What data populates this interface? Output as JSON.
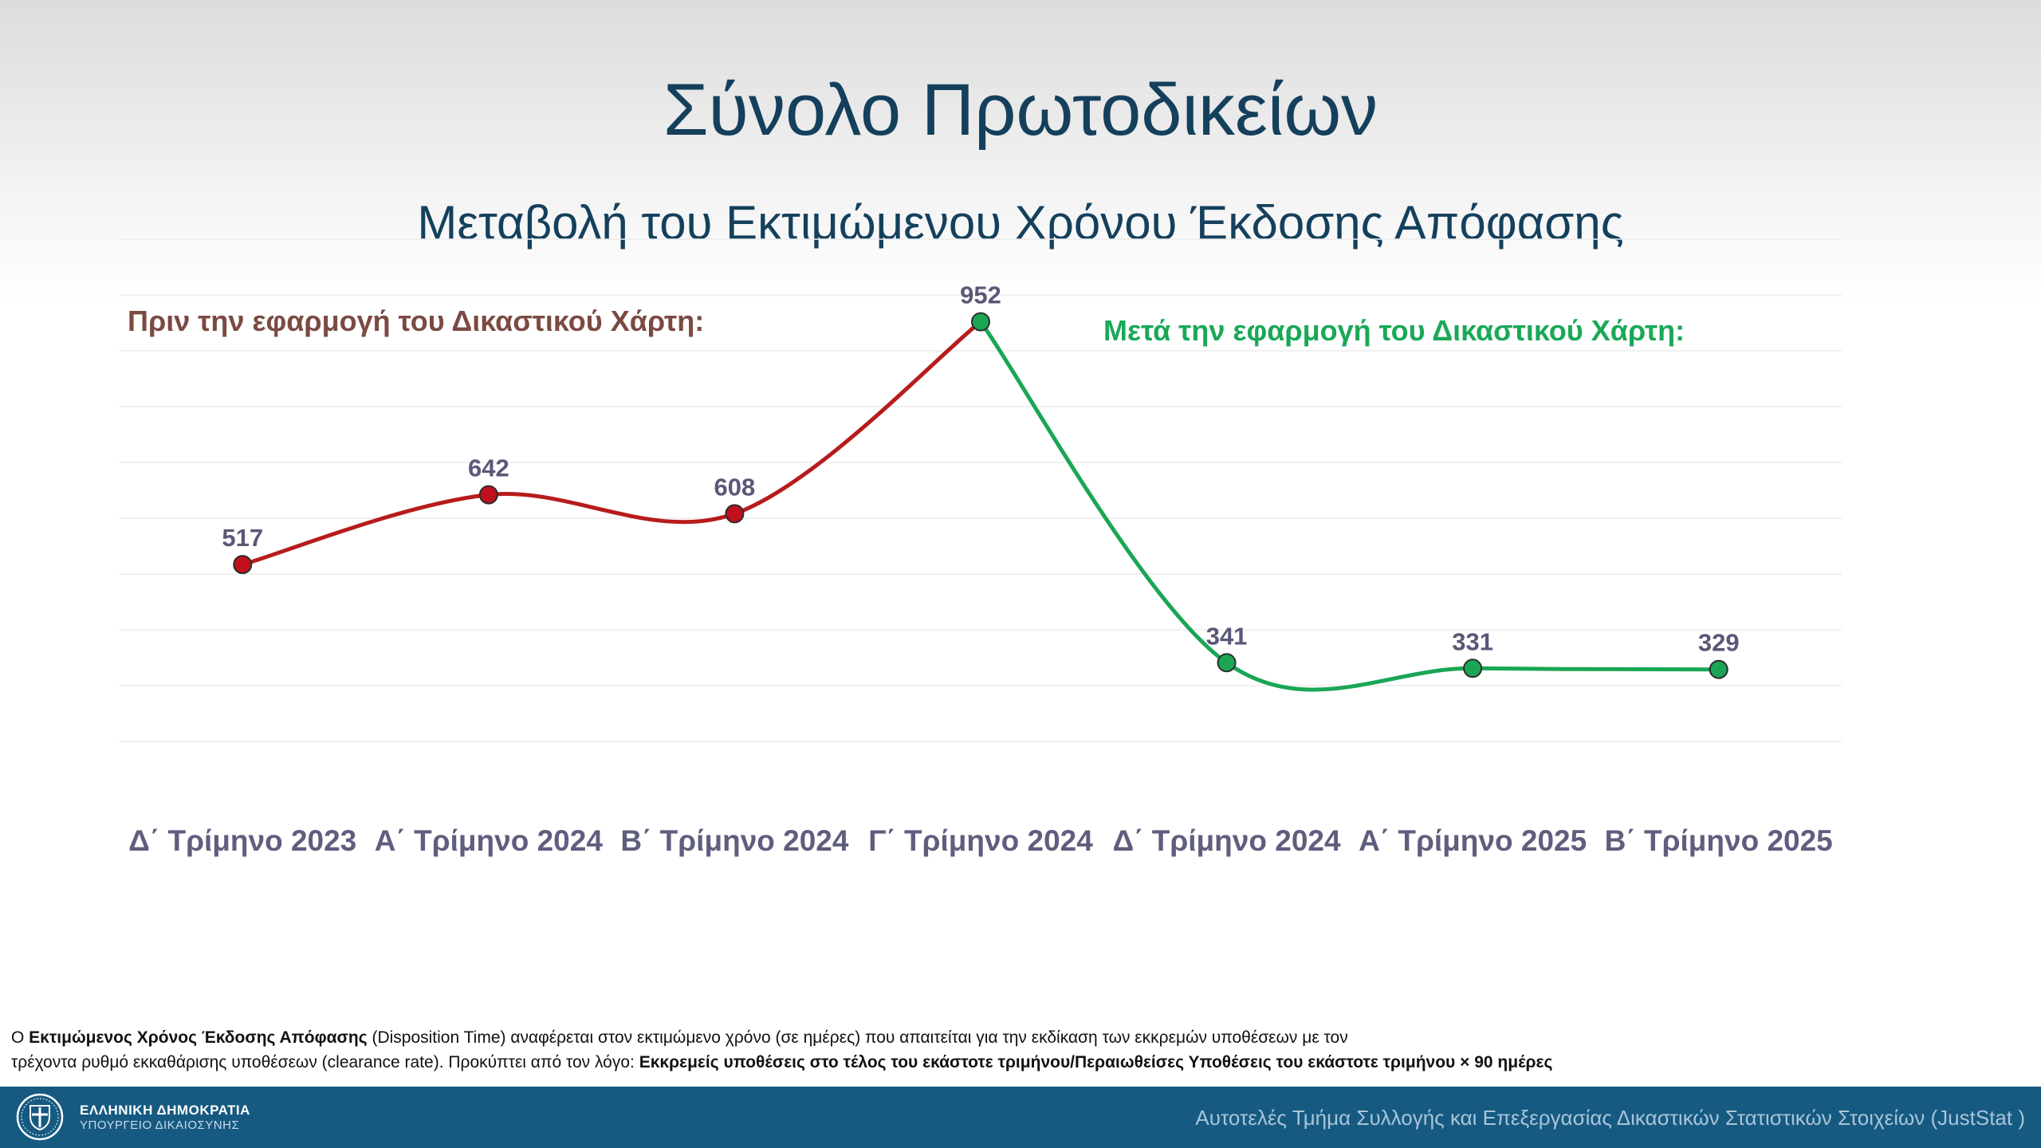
{
  "title": "Σύνολο Πρωτοδικείων",
  "subtitle": "Μεταβολή του Εκτιμώμενου Χρόνου Έκδοσης Απόφασης",
  "annotations": {
    "before": "Πριν την εφαρμογή του Δικαστικού Χάρτη:",
    "after": "Μετά την εφαρμογή του Δικαστικού Χάρτη:"
  },
  "chart_data": {
    "type": "line",
    "categories": [
      "Δ΄ Τρίμηνο 2023",
      "Α΄ Τρίμηνο 2024",
      "Β΄ Τρίμηνο 2024",
      "Γ΄ Τρίμηνο 2024",
      "Δ΄ Τρίμηνο 2024",
      "Α΄ Τρίμηνο 2025",
      "Β΄ Τρίμηνο 2025"
    ],
    "series": [
      {
        "values": [
          517,
          642,
          608,
          952,
          null,
          null,
          null
        ],
        "color": "#b71c1c",
        "marker_fill": "#c0101c"
      },
      {
        "values": [
          null,
          null,
          null,
          952,
          341,
          331,
          329
        ],
        "color": "#1aa655",
        "marker_fill": "#1aa655"
      }
    ],
    "data_labels": [
      "517",
      "642",
      "608",
      "952",
      "341",
      "331",
      "329"
    ],
    "ylim": [
      100,
      1100
    ],
    "grid": true,
    "smooth": true,
    "legend": "none"
  },
  "footnote": {
    "line1_prefix": "Ο ",
    "line1_bold": "Εκτιμώμενος Χρόνος Έκδοσης Απόφασης",
    "line1_rest": " (Disposition Time) αναφέρεται στον εκτιμώμενο χρόνο (σε ημέρες) που απαιτείται για την εκδίκαση των εκκρεμών υποθέσεων με τον",
    "line2_start": "τρέχοντα ρυθμό εκκαθάρισης υποθέσεων (clearance rate). Προκύπτει από τον λόγο: ",
    "line2_bold": "Εκκρεμείς υποθέσεις στο τέλος του εκάστοτε τριμήνου/Περαιωθείσες Υποθέσεις του εκάστοτε τριμήνου × 90 ημέρες"
  },
  "footer": {
    "org_line1": "ΕΛΛΗΝΙΚΗ ΔΗΜΟΚΡΑΤΙΑ",
    "org_line2": "ΥΠΟΥΡΓΕΙΟ ΔΙΚΑΙΟΣΥΝΗΣ",
    "department": "Αυτοτελές Τμήμα Συλλογής και Επεξεργασίας Δικαστικών Στατιστικών Στοιχείων (JustStat )"
  },
  "colors": {
    "title": "#14405c",
    "footer_bg": "#165a82",
    "before_label": "#7b4a42",
    "after_label": "#1aa857"
  }
}
